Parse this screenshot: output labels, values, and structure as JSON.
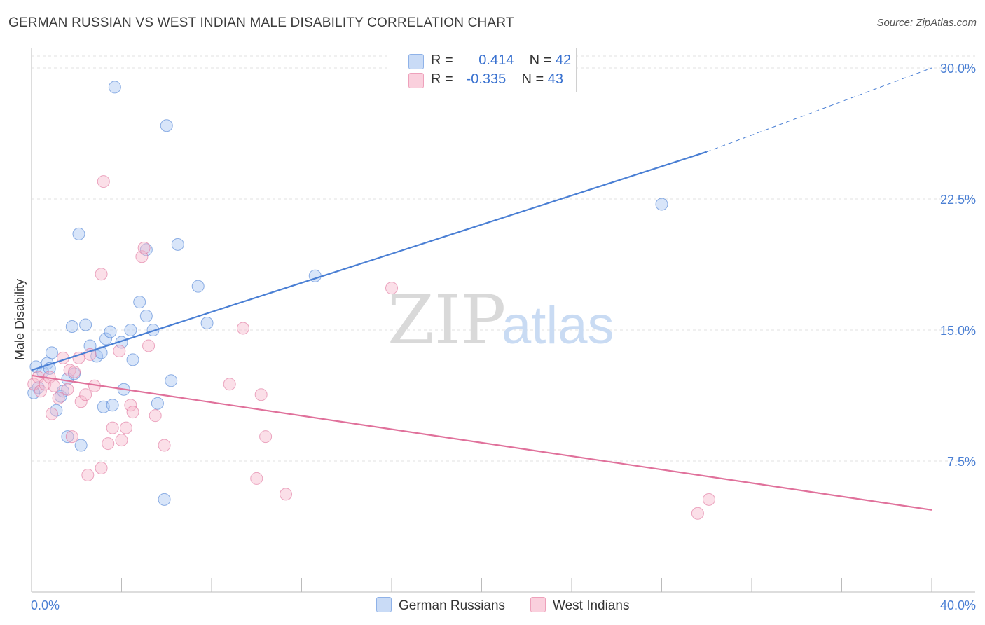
{
  "title": "GERMAN RUSSIAN VS WEST INDIAN MALE DISABILITY CORRELATION CHART",
  "source": "Source: ZipAtlas.com",
  "watermark": {
    "zip": "ZIP",
    "atlas": "atlas"
  },
  "legend": [
    {
      "r_label": "R =",
      "r_value": "0.414",
      "n_label": "N =",
      "n_value": "42",
      "color": "#a9c6f2"
    },
    {
      "r_label": "R =",
      "r_value": "-0.335",
      "n_label": "N =",
      "n_value": "43",
      "color": "#f6b7cb"
    }
  ],
  "bottom_legend": [
    {
      "label": "German Russians",
      "color": "#a9c6f2"
    },
    {
      "label": "West Indians",
      "color": "#f6b7cb"
    }
  ],
  "chart_data": {
    "type": "scatter",
    "title": "GERMAN RUSSIAN VS WEST INDIAN MALE DISABILITY CORRELATION CHART",
    "xlabel": "",
    "ylabel": "Male Disability",
    "xlim": [
      0,
      40
    ],
    "ylim": [
      0,
      30
    ],
    "x_tick_labels": [
      "0.0%",
      "40.0%"
    ],
    "y_ticks": [
      7.5,
      15.0,
      22.5,
      30.0
    ],
    "y_tick_labels": [
      "7.5%",
      "15.0%",
      "22.5%",
      "30.0%"
    ],
    "grid": true,
    "legend_position": "top-center",
    "series": [
      {
        "name": "German Russians",
        "color": "#4a7fd4",
        "fill": "#a9c6f2",
        "trend": {
          "x": [
            0,
            30
          ],
          "y": [
            12.7,
            25.2
          ],
          "dashed_to": [
            40,
            30.0
          ]
        },
        "points": [
          [
            0.2,
            12.9
          ],
          [
            0.5,
            12.6
          ],
          [
            0.3,
            11.7
          ],
          [
            0.7,
            13.1
          ],
          [
            0.8,
            12.8
          ],
          [
            0.9,
            13.7
          ],
          [
            1.1,
            10.4
          ],
          [
            1.3,
            11.2
          ],
          [
            1.4,
            11.5
          ],
          [
            1.6,
            8.9
          ],
          [
            1.6,
            12.2
          ],
          [
            1.8,
            15.2
          ],
          [
            1.9,
            12.5
          ],
          [
            2.1,
            20.5
          ],
          [
            2.2,
            8.4
          ],
          [
            2.4,
            15.3
          ],
          [
            2.6,
            14.1
          ],
          [
            2.9,
            13.5
          ],
          [
            3.1,
            13.7
          ],
          [
            3.2,
            10.6
          ],
          [
            3.3,
            14.5
          ],
          [
            3.5,
            14.9
          ],
          [
            3.6,
            10.7
          ],
          [
            3.7,
            28.9
          ],
          [
            4.0,
            14.3
          ],
          [
            4.1,
            11.6
          ],
          [
            4.4,
            15.0
          ],
          [
            4.5,
            13.3
          ],
          [
            4.8,
            16.6
          ],
          [
            5.1,
            19.6
          ],
          [
            5.1,
            15.8
          ],
          [
            5.4,
            15.0
          ],
          [
            5.6,
            10.8
          ],
          [
            5.9,
            5.3
          ],
          [
            6.0,
            26.7
          ],
          [
            6.2,
            12.1
          ],
          [
            6.5,
            19.9
          ],
          [
            7.4,
            17.5
          ],
          [
            7.8,
            15.4
          ],
          [
            12.6,
            18.1
          ],
          [
            28.0,
            22.2
          ],
          [
            0.1,
            11.4
          ]
        ]
      },
      {
        "name": "West Indians",
        "color": "#e0719b",
        "fill": "#f6b7cb",
        "trend": {
          "x": [
            0,
            40
          ],
          "y": [
            12.4,
            4.7
          ]
        },
        "points": [
          [
            0.1,
            11.9
          ],
          [
            0.3,
            12.3
          ],
          [
            0.4,
            11.5
          ],
          [
            0.6,
            11.9
          ],
          [
            0.8,
            12.3
          ],
          [
            0.9,
            10.2
          ],
          [
            1.0,
            11.8
          ],
          [
            1.2,
            11.1
          ],
          [
            1.4,
            13.4
          ],
          [
            1.6,
            11.6
          ],
          [
            1.7,
            12.7
          ],
          [
            1.9,
            12.6
          ],
          [
            1.8,
            8.9
          ],
          [
            2.1,
            13.4
          ],
          [
            2.2,
            10.9
          ],
          [
            2.4,
            11.3
          ],
          [
            2.5,
            6.7
          ],
          [
            2.6,
            13.6
          ],
          [
            2.8,
            11.8
          ],
          [
            3.1,
            18.2
          ],
          [
            3.1,
            7.1
          ],
          [
            3.2,
            23.5
          ],
          [
            3.4,
            8.5
          ],
          [
            3.6,
            9.4
          ],
          [
            3.9,
            13.8
          ],
          [
            4.0,
            8.7
          ],
          [
            4.2,
            9.4
          ],
          [
            4.4,
            10.7
          ],
          [
            4.5,
            10.3
          ],
          [
            4.9,
            19.2
          ],
          [
            5.0,
            19.7
          ],
          [
            5.2,
            14.1
          ],
          [
            5.5,
            10.1
          ],
          [
            5.9,
            8.4
          ],
          [
            8.8,
            11.9
          ],
          [
            9.4,
            15.1
          ],
          [
            10.0,
            6.5
          ],
          [
            10.2,
            11.3
          ],
          [
            10.4,
            8.9
          ],
          [
            11.3,
            5.6
          ],
          [
            16.0,
            17.4
          ],
          [
            29.6,
            4.5
          ],
          [
            30.1,
            5.3
          ]
        ]
      }
    ]
  }
}
